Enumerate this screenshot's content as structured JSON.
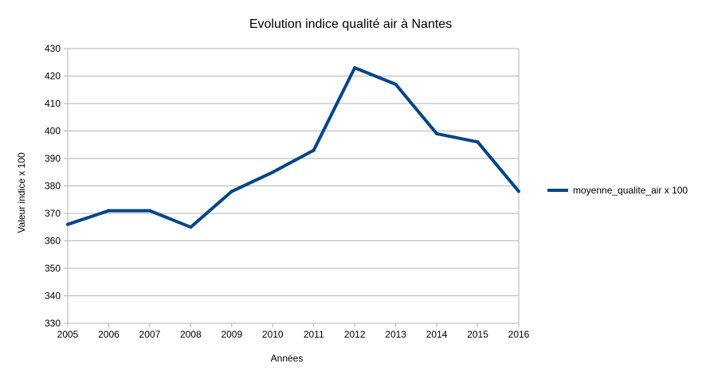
{
  "chart_data": {
    "type": "line",
    "title": "Evolution indice qualité air à Nantes",
    "xlabel": "Années",
    "ylabel": "Valeur indice x 100",
    "categories": [
      "2005",
      "2006",
      "2007",
      "2008",
      "2009",
      "2010",
      "2011",
      "2012",
      "2013",
      "2014",
      "2015",
      "2016"
    ],
    "series": [
      {
        "name": "moyenne_qualite_air x 100",
        "color": "#004586",
        "values": [
          366,
          371,
          371,
          365,
          378,
          385,
          393,
          423,
          417,
          399,
          396,
          378
        ]
      }
    ],
    "ylim": [
      330,
      430
    ],
    "yticks": [
      "330",
      "340",
      "350",
      "360",
      "370",
      "380",
      "390",
      "400",
      "410",
      "420",
      "430"
    ],
    "grid": true,
    "legend_position": "right"
  }
}
